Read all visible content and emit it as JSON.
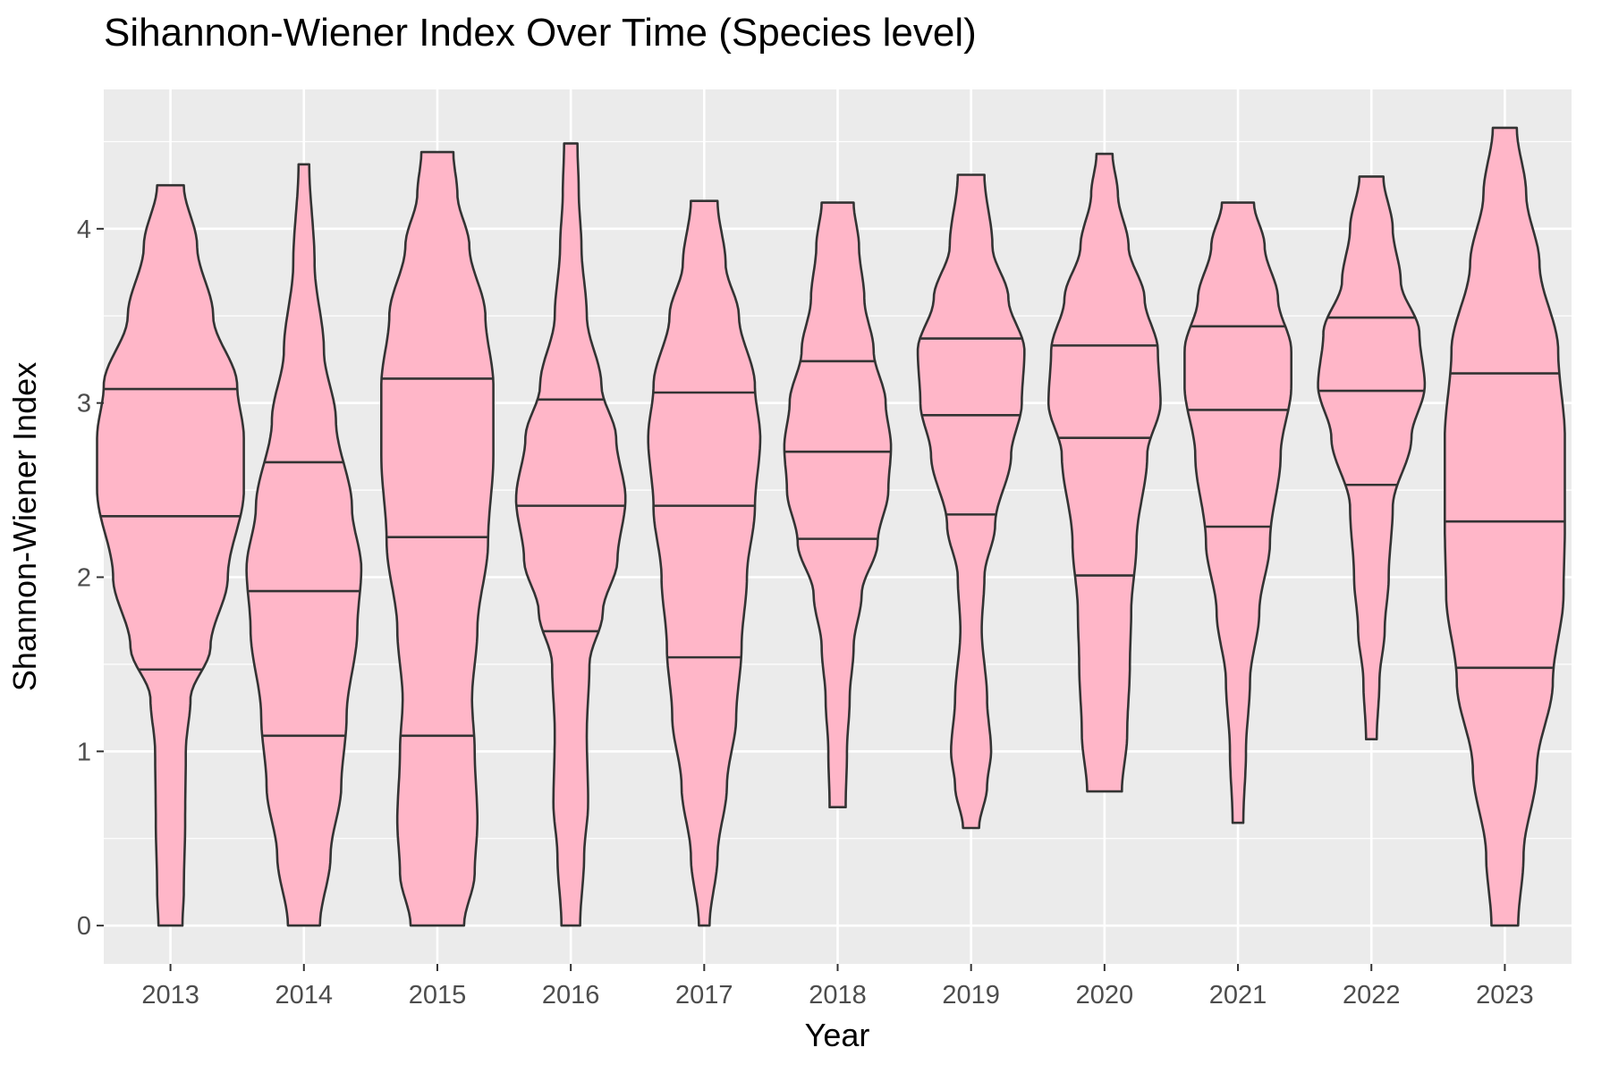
{
  "chart_data": {
    "type": "violin",
    "title": "Sihannon-Wiener Index Over Time (Species level)",
    "xlabel": "Year",
    "ylabel": "Shannon-Wiener Index",
    "ylim": [
      -0.22,
      4.8
    ],
    "yticks": [
      0,
      1,
      2,
      3,
      4
    ],
    "grid": true,
    "fill_color": "#FFB6C8",
    "stroke_color": "#333333",
    "panel_color": "#EBEBEB",
    "series": [
      {
        "category": "2013",
        "min": 0.0,
        "max": 4.25,
        "quantiles": [
          1.47,
          2.35,
          3.08
        ],
        "shape": [
          [
            0.0,
            0.09
          ],
          [
            0.2,
            0.1
          ],
          [
            0.6,
            0.11
          ],
          [
            1.0,
            0.115
          ],
          [
            1.3,
            0.15
          ],
          [
            1.6,
            0.3
          ],
          [
            2.0,
            0.43
          ],
          [
            2.5,
            0.55
          ],
          [
            2.8,
            0.55
          ],
          [
            3.1,
            0.5
          ],
          [
            3.5,
            0.32
          ],
          [
            3.9,
            0.2
          ],
          [
            4.25,
            0.1
          ]
        ]
      },
      {
        "category": "2014",
        "min": 0.0,
        "max": 4.37,
        "quantiles": [
          1.09,
          2.66,
          1.92
        ],
        "shape": [
          [
            0.0,
            0.12
          ],
          [
            0.4,
            0.2
          ],
          [
            0.8,
            0.28
          ],
          [
            1.2,
            0.32
          ],
          [
            1.7,
            0.4
          ],
          [
            2.05,
            0.43
          ],
          [
            2.4,
            0.36
          ],
          [
            2.9,
            0.24
          ],
          [
            3.3,
            0.15
          ],
          [
            3.8,
            0.08
          ],
          [
            4.37,
            0.04
          ]
        ]
      },
      {
        "category": "2015",
        "min": 0.0,
        "max": 4.44,
        "quantiles": [
          1.09,
          2.23,
          3.14
        ],
        "shape": [
          [
            0.0,
            0.2
          ],
          [
            0.3,
            0.28
          ],
          [
            0.6,
            0.3
          ],
          [
            1.0,
            0.28
          ],
          [
            1.3,
            0.26
          ],
          [
            1.7,
            0.3
          ],
          [
            2.2,
            0.38
          ],
          [
            2.7,
            0.42
          ],
          [
            3.1,
            0.42
          ],
          [
            3.5,
            0.36
          ],
          [
            3.9,
            0.24
          ],
          [
            4.2,
            0.15
          ],
          [
            4.44,
            0.12
          ]
        ]
      },
      {
        "category": "2016",
        "min": 0.0,
        "max": 4.49,
        "quantiles": [
          1.69,
          2.41,
          3.02
        ],
        "shape": [
          [
            0.0,
            0.07
          ],
          [
            0.4,
            0.1
          ],
          [
            0.7,
            0.13
          ],
          [
            1.1,
            0.12
          ],
          [
            1.5,
            0.14
          ],
          [
            1.8,
            0.24
          ],
          [
            2.1,
            0.35
          ],
          [
            2.45,
            0.41
          ],
          [
            2.8,
            0.34
          ],
          [
            3.1,
            0.23
          ],
          [
            3.5,
            0.12
          ],
          [
            3.9,
            0.08
          ],
          [
            4.2,
            0.06
          ],
          [
            4.49,
            0.05
          ]
        ]
      },
      {
        "category": "2017",
        "min": 0.0,
        "max": 4.16,
        "quantiles": [
          1.54,
          2.41,
          3.06
        ],
        "shape": [
          [
            0.0,
            0.04
          ],
          [
            0.4,
            0.1
          ],
          [
            0.8,
            0.17
          ],
          [
            1.2,
            0.24
          ],
          [
            1.6,
            0.28
          ],
          [
            2.0,
            0.32
          ],
          [
            2.4,
            0.38
          ],
          [
            2.8,
            0.42
          ],
          [
            3.1,
            0.38
          ],
          [
            3.5,
            0.26
          ],
          [
            3.8,
            0.16
          ],
          [
            4.16,
            0.1
          ]
        ]
      },
      {
        "category": "2018",
        "min": 0.68,
        "max": 4.15,
        "quantiles": [
          2.22,
          2.72,
          3.24
        ],
        "shape": [
          [
            0.68,
            0.06
          ],
          [
            1.0,
            0.07
          ],
          [
            1.3,
            0.09
          ],
          [
            1.6,
            0.12
          ],
          [
            1.9,
            0.18
          ],
          [
            2.2,
            0.3
          ],
          [
            2.5,
            0.38
          ],
          [
            2.75,
            0.4
          ],
          [
            3.0,
            0.36
          ],
          [
            3.3,
            0.27
          ],
          [
            3.6,
            0.2
          ],
          [
            3.9,
            0.16
          ],
          [
            4.15,
            0.12
          ]
        ]
      },
      {
        "category": "2019",
        "min": 0.56,
        "max": 4.31,
        "quantiles": [
          2.36,
          2.93,
          3.37
        ],
        "shape": [
          [
            0.56,
            0.06
          ],
          [
            0.8,
            0.12
          ],
          [
            1.0,
            0.15
          ],
          [
            1.3,
            0.12
          ],
          [
            1.7,
            0.08
          ],
          [
            2.0,
            0.1
          ],
          [
            2.3,
            0.18
          ],
          [
            2.7,
            0.3
          ],
          [
            3.0,
            0.38
          ],
          [
            3.3,
            0.4
          ],
          [
            3.6,
            0.28
          ],
          [
            3.9,
            0.16
          ],
          [
            4.31,
            0.1
          ]
        ]
      },
      {
        "category": "2020",
        "min": 0.77,
        "max": 4.43,
        "quantiles": [
          2.01,
          2.8,
          3.33
        ],
        "shape": [
          [
            0.77,
            0.13
          ],
          [
            1.1,
            0.17
          ],
          [
            1.5,
            0.19
          ],
          [
            1.8,
            0.2
          ],
          [
            2.2,
            0.24
          ],
          [
            2.7,
            0.32
          ],
          [
            3.0,
            0.42
          ],
          [
            3.3,
            0.4
          ],
          [
            3.6,
            0.3
          ],
          [
            3.9,
            0.18
          ],
          [
            4.2,
            0.1
          ],
          [
            4.43,
            0.06
          ]
        ]
      },
      {
        "category": "2021",
        "min": 0.59,
        "max": 4.15,
        "quantiles": [
          2.29,
          2.96,
          3.44
        ],
        "shape": [
          [
            0.59,
            0.04
          ],
          [
            1.0,
            0.06
          ],
          [
            1.4,
            0.09
          ],
          [
            1.8,
            0.16
          ],
          [
            2.2,
            0.24
          ],
          [
            2.7,
            0.32
          ],
          [
            3.1,
            0.4
          ],
          [
            3.3,
            0.4
          ],
          [
            3.6,
            0.3
          ],
          [
            3.9,
            0.2
          ],
          [
            4.15,
            0.12
          ]
        ]
      },
      {
        "category": "2022",
        "min": 1.07,
        "max": 4.3,
        "quantiles": [
          2.53,
          3.07,
          3.49
        ],
        "shape": [
          [
            1.07,
            0.04
          ],
          [
            1.4,
            0.06
          ],
          [
            1.7,
            0.1
          ],
          [
            2.0,
            0.13
          ],
          [
            2.4,
            0.16
          ],
          [
            2.8,
            0.3
          ],
          [
            3.1,
            0.4
          ],
          [
            3.4,
            0.36
          ],
          [
            3.7,
            0.22
          ],
          [
            4.0,
            0.16
          ],
          [
            4.3,
            0.09
          ]
        ]
      },
      {
        "category": "2023",
        "min": 0.0,
        "max": 4.58,
        "quantiles": [
          1.48,
          2.32,
          3.17
        ],
        "shape": [
          [
            0.0,
            0.1
          ],
          [
            0.4,
            0.14
          ],
          [
            0.9,
            0.24
          ],
          [
            1.4,
            0.36
          ],
          [
            1.9,
            0.44
          ],
          [
            2.3,
            0.45
          ],
          [
            2.8,
            0.45
          ],
          [
            3.3,
            0.4
          ],
          [
            3.8,
            0.26
          ],
          [
            4.2,
            0.16
          ],
          [
            4.58,
            0.09
          ]
        ]
      }
    ]
  }
}
